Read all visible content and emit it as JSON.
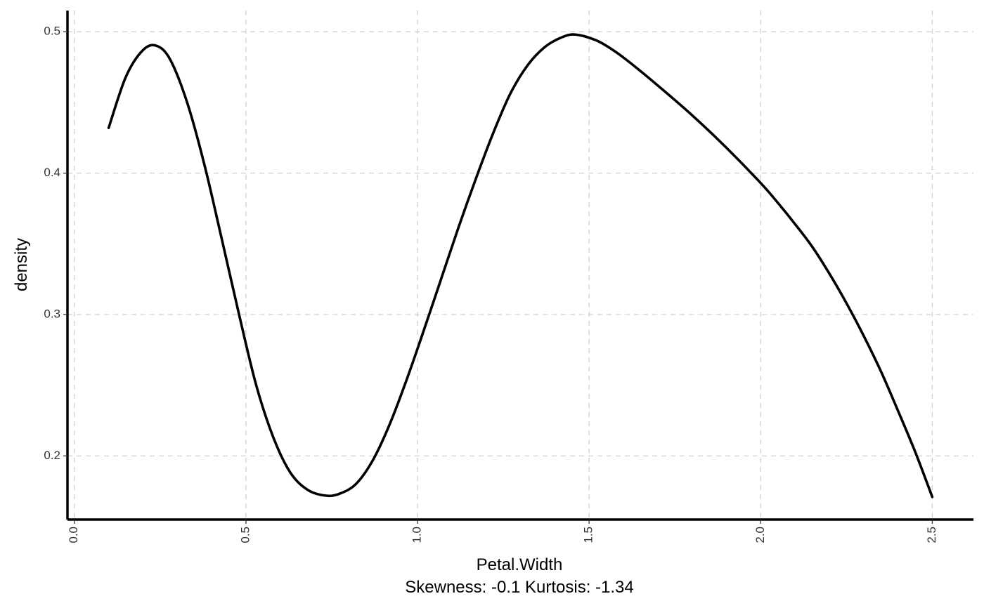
{
  "chart_data": {
    "type": "line",
    "title": "",
    "xlabel": "Petal.Width",
    "ylabel": "density",
    "caption": "Skewness: -0.1 Kurtosis: -1.34",
    "xlim": [
      -0.02,
      2.62
    ],
    "ylim": [
      0.155,
      0.515
    ],
    "x_ticks": [
      0.0,
      0.5,
      1.0,
      1.5,
      2.0,
      2.5
    ],
    "x_tick_labels": [
      "0.0",
      "0.5",
      "1.0",
      "1.5",
      "2.0",
      "2.5"
    ],
    "y_ticks": [
      0.2,
      0.3,
      0.4,
      0.5
    ],
    "y_tick_labels": [
      "0.2",
      "0.3",
      "0.4",
      "0.5"
    ],
    "grid": true,
    "grid_style": "dashed",
    "line_color": "#000000",
    "grid_color": "#d0d0d0",
    "series": [
      {
        "x": [
          0.1,
          0.15,
          0.2,
          0.24,
          0.28,
          0.33,
          0.38,
          0.43,
          0.48,
          0.53,
          0.58,
          0.63,
          0.68,
          0.73,
          0.77,
          0.82,
          0.87,
          0.92,
          0.97,
          1.02,
          1.07,
          1.12,
          1.17,
          1.22,
          1.27,
          1.32,
          1.37,
          1.42,
          1.46,
          1.52,
          1.57,
          1.62,
          1.7,
          1.8,
          1.9,
          2.0,
          2.05,
          2.1,
          2.15,
          2.2,
          2.25,
          2.3,
          2.35,
          2.4,
          2.45,
          2.5
        ],
        "y": [
          0.432,
          0.468,
          0.487,
          0.49,
          0.48,
          0.449,
          0.405,
          0.353,
          0.3,
          0.25,
          0.213,
          0.188,
          0.176,
          0.172,
          0.173,
          0.18,
          0.197,
          0.223,
          0.255,
          0.29,
          0.326,
          0.362,
          0.396,
          0.428,
          0.456,
          0.476,
          0.489,
          0.496,
          0.498,
          0.494,
          0.487,
          0.478,
          0.462,
          0.441,
          0.418,
          0.393,
          0.379,
          0.364,
          0.348,
          0.329,
          0.308,
          0.285,
          0.26,
          0.232,
          0.203,
          0.171
        ]
      }
    ]
  }
}
